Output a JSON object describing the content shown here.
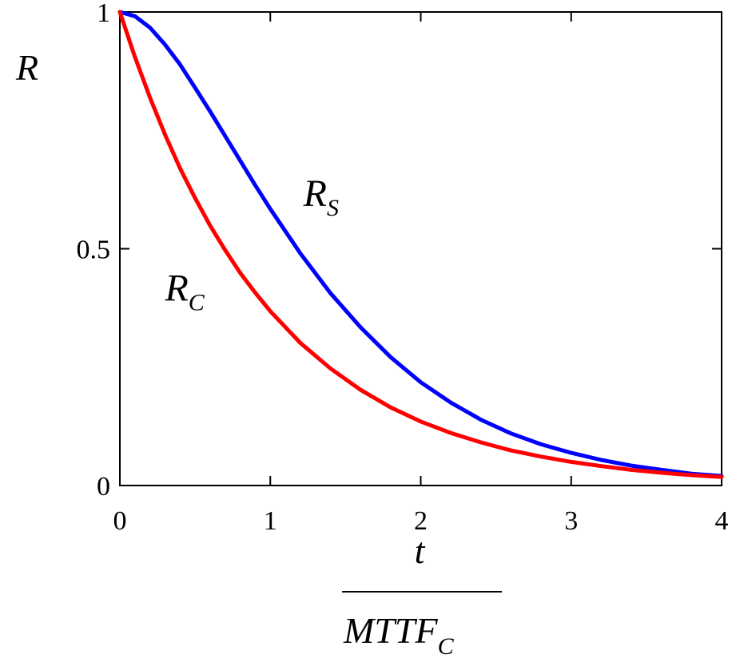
{
  "chart_data": {
    "type": "line",
    "title": "",
    "xlim": [
      0,
      4
    ],
    "ylim": [
      0,
      1
    ],
    "grid": false,
    "legend": "none",
    "x_ticks": [
      {
        "value": 0,
        "label": "0"
      },
      {
        "value": 1,
        "label": "1"
      },
      {
        "value": 2,
        "label": "2"
      },
      {
        "value": 3,
        "label": "3"
      },
      {
        "value": 4,
        "label": "4"
      }
    ],
    "y_ticks": [
      {
        "value": 0,
        "label": "0"
      },
      {
        "value": 0.5,
        "label": "0.5"
      },
      {
        "value": 1,
        "label": "1"
      }
    ],
    "ylabel": "R",
    "xlabel": {
      "numerator": "t",
      "denominator_main": "MTTF",
      "denominator_sub": "C"
    },
    "series": [
      {
        "name": "R",
        "subscript": "S",
        "color": "#0000ff",
        "x": [
          0,
          0.1,
          0.2,
          0.3,
          0.4,
          0.5,
          0.6,
          0.7,
          0.8,
          0.9,
          1.0,
          1.2,
          1.4,
          1.6,
          1.8,
          2.0,
          2.2,
          2.4,
          2.6,
          2.8,
          3.0,
          3.2,
          3.4,
          3.6,
          3.8,
          4.0
        ],
        "y": [
          1.0,
          0.991,
          0.967,
          0.931,
          0.889,
          0.84,
          0.79,
          0.738,
          0.686,
          0.634,
          0.584,
          0.49,
          0.406,
          0.334,
          0.271,
          0.218,
          0.175,
          0.139,
          0.11,
          0.087,
          0.069,
          0.054,
          0.042,
          0.033,
          0.025,
          0.02
        ]
      },
      {
        "name": "R",
        "subscript": "C",
        "color": "#ff0000",
        "x": [
          0,
          0.1,
          0.2,
          0.3,
          0.4,
          0.5,
          0.6,
          0.7,
          0.8,
          0.9,
          1.0,
          1.2,
          1.4,
          1.6,
          1.8,
          2.0,
          2.2,
          2.4,
          2.6,
          2.8,
          3.0,
          3.2,
          3.4,
          3.6,
          3.8,
          4.0
        ],
        "y": [
          1.0,
          0.905,
          0.819,
          0.741,
          0.67,
          0.607,
          0.549,
          0.497,
          0.449,
          0.407,
          0.368,
          0.301,
          0.247,
          0.202,
          0.165,
          0.135,
          0.111,
          0.091,
          0.074,
          0.061,
          0.05,
          0.041,
          0.033,
          0.027,
          0.022,
          0.018
        ]
      }
    ],
    "annotations": [
      {
        "main": "R",
        "sub": "S",
        "x": 1.22,
        "y": 0.59
      },
      {
        "main": "R",
        "sub": "C",
        "x": 0.3,
        "y": 0.39
      }
    ]
  }
}
